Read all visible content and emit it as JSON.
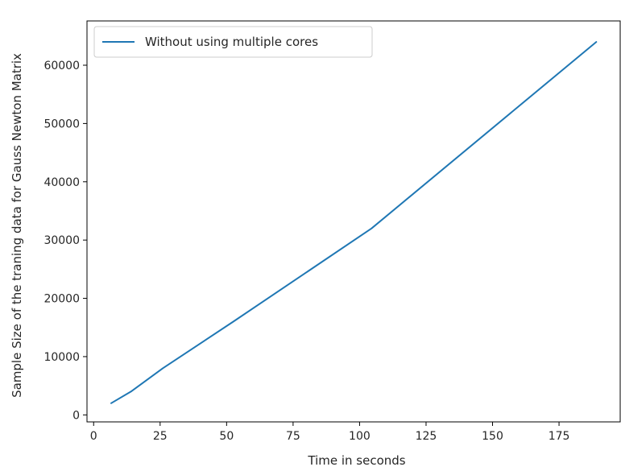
{
  "chart_data": {
    "type": "line",
    "xlabel": "Time in seconds",
    "ylabel": "Sample Size of the traning data for Gauss Newton Matrix",
    "xlim": [
      -2.5,
      198
    ],
    "ylim": [
      -1200,
      67600
    ],
    "xticks": [
      0,
      25,
      50,
      75,
      100,
      125,
      150,
      175
    ],
    "yticks": [
      0,
      10000,
      20000,
      30000,
      40000,
      50000,
      60000
    ],
    "legend_position": "top-left",
    "grid": false,
    "series": [
      {
        "name": "Without using multiple cores",
        "color": "#1f77b4",
        "x": [
          6.6,
          14.0,
          26.0,
          52.5,
          104.5,
          189.0
        ],
        "y": [
          2000,
          4000,
          8000,
          16000,
          32000,
          64000
        ]
      }
    ]
  }
}
